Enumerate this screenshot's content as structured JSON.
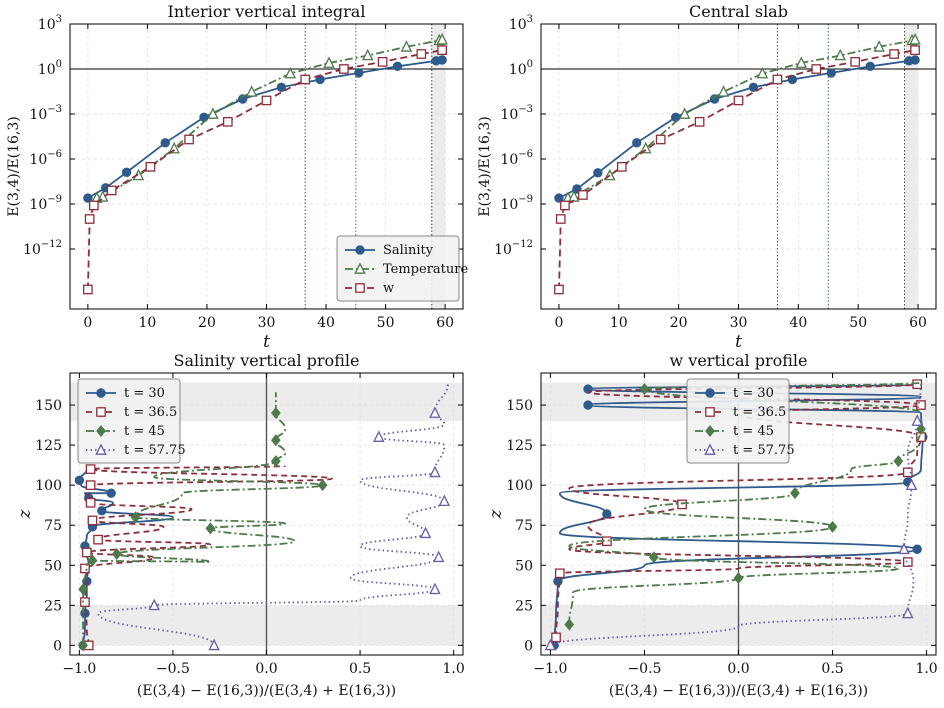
{
  "chart_data": [
    {
      "type": "line",
      "title": "Interior vertical integral",
      "xlabel": "t",
      "ylabel": "E(3,4)/E(16,3)",
      "yscale": "log",
      "xlim": [
        -3,
        63
      ],
      "ylim": [
        1e-16,
        1000
      ],
      "xticks": [
        0,
        10,
        20,
        30,
        40,
        50,
        60
      ],
      "yticks": [
        -12,
        -9,
        -6,
        -3,
        0,
        3
      ],
      "hlines": [
        1
      ],
      "vlines": [
        {
          "x": 36.5,
          "color": "#8e2e3b"
        },
        {
          "x": 45,
          "color": "#4c7a4a"
        },
        {
          "x": 57.75,
          "color": "#3f3f3f"
        }
      ],
      "shaded_x": [
        57.75,
        60
      ],
      "legend": {
        "position": "lower-right",
        "entries": [
          "Salinity",
          "Temperature",
          "w"
        ]
      },
      "series": [
        {
          "name": "Salinity",
          "color": "#2e5a8c",
          "dash": "",
          "marker": "circle",
          "x": [
            0,
            3,
            6.5,
            13,
            19.5,
            26,
            32.5,
            39,
            45.5,
            52,
            58.5,
            59.5
          ],
          "y": [
            2.5e-09,
            1.2e-08,
            1.3e-07,
            1.2e-05,
            0.0006,
            0.01,
            0.06,
            0.2,
            0.55,
            1.5,
            3.5,
            4
          ]
        },
        {
          "name": "Temperature",
          "color": "#4c7a4a",
          "dash": "8 3 2 3",
          "marker": "triangle",
          "x": [
            1.5,
            2.5,
            8.5,
            14.5,
            21,
            27.5,
            34,
            40.5,
            47,
            53.5,
            59,
            59.5
          ],
          "y": [
            2.5e-09,
            3e-09,
            8e-08,
            5e-06,
            0.001,
            0.03,
            0.5,
            2.5,
            8,
            30,
            80,
            90
          ]
        },
        {
          "name": "w",
          "color": "#8e2e3b",
          "dash": "7 4",
          "marker": "square",
          "x": [
            0,
            0.3,
            1,
            4,
            10.5,
            17,
            23.5,
            30,
            36.5,
            43,
            49.5,
            56,
            59.5
          ],
          "y": [
            2e-15,
            1e-10,
            8e-10,
            8e-09,
            3e-07,
            2e-05,
            0.0003,
            0.008,
            0.2,
            1,
            3,
            10,
            18
          ]
        }
      ]
    },
    {
      "type": "line",
      "title": "Central slab",
      "xlabel": "t",
      "ylabel": "E(3,4)/E(16,3)",
      "yscale": "log",
      "xlim": [
        -3,
        63
      ],
      "ylim": [
        1e-16,
        1000
      ],
      "xticks": [
        0,
        10,
        20,
        30,
        40,
        50,
        60
      ],
      "yticks": [
        -12,
        -9,
        -6,
        -3,
        0,
        3
      ],
      "hlines": [
        1
      ],
      "vlines": [
        {
          "x": 36.5,
          "color": "#8e2e3b"
        },
        {
          "x": 45,
          "color": "#2e5a8c"
        },
        {
          "x": 57.75,
          "color": "#3f3f3f"
        }
      ],
      "shaded_x": [
        57.75,
        60
      ],
      "series": [
        {
          "name": "Salinity",
          "color": "#2e5a8c",
          "dash": "",
          "marker": "circle",
          "x": [
            0,
            3,
            6.5,
            13,
            19.5,
            26,
            32.5,
            39,
            45.5,
            52,
            58.5,
            59.5
          ],
          "y": [
            2.5e-09,
            1e-08,
            1.2e-07,
            1.2e-05,
            0.0006,
            0.01,
            0.06,
            0.2,
            0.55,
            1.5,
            3.5,
            4
          ]
        },
        {
          "name": "Temperature",
          "color": "#4c7a4a",
          "dash": "8 3 2 3",
          "marker": "triangle",
          "x": [
            1.5,
            2.5,
            8.5,
            14.5,
            21,
            27.5,
            34,
            40.5,
            47,
            53.5,
            59,
            59.5
          ],
          "y": [
            2.5e-09,
            3e-09,
            8e-08,
            5e-06,
            0.001,
            0.03,
            0.5,
            2.5,
            8,
            30,
            80,
            90
          ]
        },
        {
          "name": "w",
          "color": "#8e2e3b",
          "dash": "7 4",
          "marker": "square",
          "x": [
            0,
            0.3,
            1,
            4,
            10.5,
            17,
            23.5,
            30,
            36.5,
            43,
            49.5,
            56,
            59.5
          ],
          "y": [
            2e-15,
            1e-10,
            8e-10,
            4e-09,
            3e-07,
            2e-05,
            0.0003,
            0.008,
            0.2,
            1,
            3,
            10,
            18
          ]
        }
      ]
    },
    {
      "type": "line",
      "title": "Salinity vertical profile",
      "xlabel": "(E(3,4) − E(16,3))/(E(3,4) + E(16,3))",
      "ylabel": "z",
      "xlim": [
        -1.05,
        1.05
      ],
      "ylim": [
        -6,
        170
      ],
      "xticks": [
        -1.0,
        -0.5,
        0.0,
        0.5,
        1.0
      ],
      "yticks": [
        0,
        25,
        50,
        75,
        100,
        125,
        150
      ],
      "vlines": [
        {
          "x": 0,
          "color": "#555555"
        }
      ],
      "shaded_y": [
        [
          0,
          25
        ],
        [
          140,
          164
        ]
      ],
      "legend": {
        "position": "upper-left",
        "entries": [
          "t = 30",
          "t = 36.5",
          "t = 45",
          "t = 57.75"
        ]
      },
      "series": [
        {
          "name": "t = 30",
          "color": "#2e5a8c",
          "dash": "",
          "marker": "circle",
          "x": [
            -0.98,
            -0.97,
            -0.97,
            -0.96,
            -0.96,
            -0.95,
            -0.97,
            -0.96,
            -0.93,
            -0.5,
            -0.88,
            -0.82,
            -0.95,
            -0.97,
            -0.83,
            -0.99,
            -1.0,
            -0.96
          ],
          "y": [
            0,
            10,
            20,
            30,
            40,
            50,
            62,
            68,
            74,
            80,
            84,
            89,
            92,
            95,
            95,
            100,
            103,
            110
          ]
        },
        {
          "name": "t = 36.5",
          "color": "#8e2e3b",
          "dash": "6 4",
          "marker": "square",
          "x": [
            -0.95,
            -0.96,
            -0.97,
            -0.96,
            -0.97,
            -0.6,
            -0.96,
            -0.3,
            -0.9,
            -0.55,
            -0.93,
            -0.4,
            -0.94,
            -0.95,
            -0.94,
            0.35,
            -0.94,
            0.1
          ],
          "y": [
            0,
            10,
            27,
            45,
            48,
            55,
            58,
            63,
            66,
            74,
            78,
            85,
            89,
            96,
            100,
            104,
            110,
            112
          ]
        },
        {
          "name": "t = 45",
          "color": "#4c7a4a",
          "dash": "8 3 2 3",
          "marker": "diamond",
          "x": [
            -0.98,
            -0.98,
            -0.98,
            -0.96,
            -0.93,
            -0.3,
            -0.8,
            0.15,
            -0.3,
            0.1,
            -0.7,
            -0.45,
            0.3,
            -0.6,
            0.05,
            0.1,
            0.05,
            0.1,
            0.05,
            0.05
          ],
          "y": [
            0,
            15,
            35,
            50,
            53,
            52,
            57,
            65,
            73,
            76,
            80,
            95,
            100,
            105,
            115,
            120,
            128,
            135,
            145,
            158
          ]
        },
        {
          "name": "t = 57.75",
          "color": "#6a5aa8",
          "dash": "1.5 3",
          "marker": "triangle",
          "x": [
            -0.28,
            -0.9,
            -0.6,
            0.5,
            0.9,
            0.45,
            0.92,
            0.5,
            0.85,
            0.75,
            0.95,
            0.5,
            0.9,
            0.95,
            0.6,
            0.95,
            0.9,
            0.97
          ],
          "y": [
            0,
            20,
            25,
            28,
            35,
            42,
            55,
            62,
            70,
            80,
            90,
            103,
            108,
            125,
            130,
            138,
            145,
            164
          ]
        }
      ]
    },
    {
      "type": "line",
      "title": "w vertical profile",
      "xlabel": "(E(3,4) − E(16,3))/(E(3,4) + E(16,3))",
      "ylabel": "z",
      "xlim": [
        -1.05,
        1.05
      ],
      "ylim": [
        -6,
        170
      ],
      "xticks": [
        -1.0,
        -0.5,
        0.0,
        0.5,
        1.0
      ],
      "yticks": [
        0,
        25,
        50,
        75,
        100,
        125,
        150
      ],
      "vlines": [
        {
          "x": 0,
          "color": "#555555"
        }
      ],
      "shaded_y": [
        [
          0,
          25
        ],
        [
          140,
          164
        ]
      ],
      "legend": {
        "position": "upper-center",
        "entries": [
          "t = 30",
          "t = 36.5",
          "t = 45",
          "t = 57.75"
        ]
      },
      "series": [
        {
          "name": "t = 30",
          "color": "#2e5a8c",
          "dash": "",
          "marker": "circle",
          "x": [
            -0.98,
            -0.97,
            -0.96,
            -0.5,
            0.95,
            -0.95,
            -0.7,
            -0.95,
            0.9,
            0.97,
            0.98,
            0.97,
            -0.8,
            0.97,
            -0.8,
            0.97
          ],
          "y": [
            0,
            20,
            40,
            50,
            60,
            70,
            82,
            95,
            102,
            110,
            130,
            145,
            150,
            155,
            160,
            163
          ]
        },
        {
          "name": "t = 36.5",
          "color": "#8e2e3b",
          "dash": "6 4",
          "marker": "square",
          "x": [
            -0.97,
            -0.96,
            -0.95,
            0.0,
            0.9,
            -0.9,
            -0.7,
            -0.8,
            -0.3,
            -0.9,
            0.9,
            0.95,
            0.97,
            0.0,
            0.97,
            -0.8,
            0.95
          ],
          "y": [
            5,
            25,
            45,
            48,
            52,
            60,
            65,
            75,
            88,
            98,
            108,
            120,
            130,
            145,
            150,
            158,
            163
          ]
        },
        {
          "name": "t = 45",
          "color": "#4c7a4a",
          "dash": "8 3 2 3",
          "marker": "diamond",
          "x": [
            -0.9,
            -0.88,
            0.0,
            0.85,
            -0.45,
            -0.9,
            0.5,
            -0.5,
            0.3,
            0.6,
            0.85,
            0.95,
            0.97,
            0.97,
            -0.5,
            0.97
          ],
          "y": [
            13,
            33,
            42,
            48,
            55,
            62,
            74,
            85,
            95,
            110,
            115,
            125,
            135,
            145,
            160,
            164
          ]
        },
        {
          "name": "t = 57.75",
          "color": "#6a5aa8",
          "dash": "1.5 3",
          "marker": "triangle",
          "x": [
            -1.0,
            0.0,
            0.9,
            0.93,
            0.88,
            0.9,
            0.92,
            0.9,
            0.95,
            0.97
          ],
          "y": [
            0,
            12,
            20,
            40,
            60,
            80,
            100,
            120,
            140,
            164
          ]
        }
      ]
    }
  ],
  "ui": {
    "titles": [
      "Interior vertical integral",
      "Central slab",
      "Salinity vertical profile",
      "w vertical profile"
    ],
    "top_legend": [
      "Salinity",
      "Temperature",
      "w"
    ],
    "bottom_legend": [
      "t = 30",
      "t = 36.5",
      "t = 45",
      "t = 57.75"
    ]
  }
}
